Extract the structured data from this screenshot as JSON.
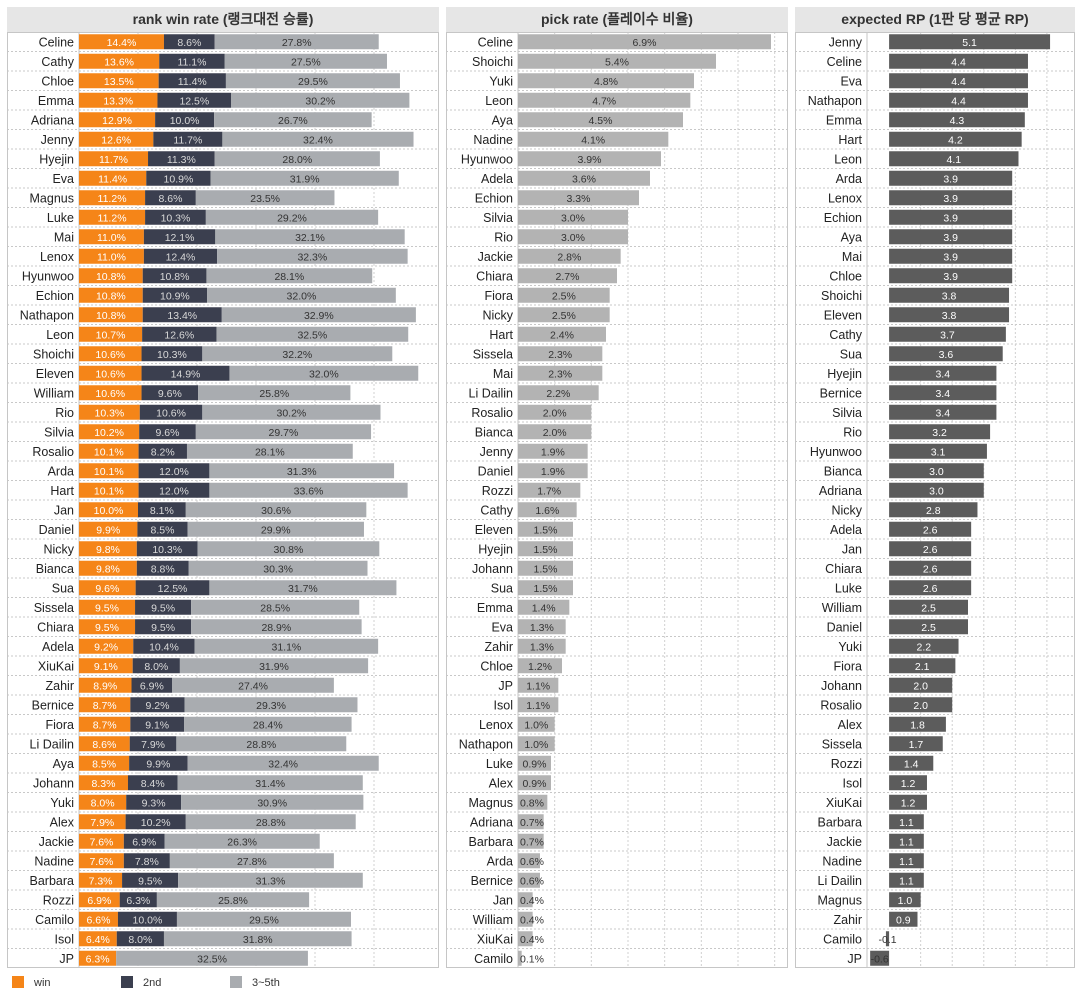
{
  "colors": {
    "win": "#f58518",
    "second": "#3b3f4f",
    "third_fifth": "#a9acb0",
    "pick": "#b3b3b3",
    "rp": "#5c5c5c"
  },
  "legend": {
    "win": "win",
    "second": "2nd",
    "third_fifth": "3~5th"
  },
  "chart_data": [
    {
      "type": "bar",
      "stacked": true,
      "orientation": "horizontal",
      "title": "rank win rate (랭크대전 승률)",
      "categories": [
        "Celine",
        "Cathy",
        "Chloe",
        "Emma",
        "Adriana",
        "Jenny",
        "Hyejin",
        "Eva",
        "Magnus",
        "Luke",
        "Mai",
        "Lenox",
        "Hyunwoo",
        "Echion",
        "Nathapon",
        "Leon",
        "Shoichi",
        "Eleven",
        "William",
        "Rio",
        "Silvia",
        "Rosalio",
        "Arda",
        "Hart",
        "Jan",
        "Daniel",
        "Nicky",
        "Bianca",
        "Sua",
        "Sissela",
        "Chiara",
        "Adela",
        "XiuKai",
        "Zahir",
        "Bernice",
        "Fiora",
        "Li Dailin",
        "Aya",
        "Johann",
        "Yuki",
        "Alex",
        "Jackie",
        "Nadine",
        "Barbara",
        "Rozzi",
        "Camilo",
        "Isol",
        "JP"
      ],
      "series": [
        {
          "name": "win",
          "unit": "%",
          "values": [
            14.4,
            13.6,
            13.5,
            13.3,
            12.9,
            12.6,
            11.7,
            11.4,
            11.2,
            11.2,
            11.0,
            11.0,
            10.8,
            10.8,
            10.8,
            10.7,
            10.6,
            10.6,
            10.6,
            10.3,
            10.2,
            10.1,
            10.1,
            10.1,
            10.0,
            9.9,
            9.8,
            9.8,
            9.6,
            9.5,
            9.5,
            9.2,
            9.1,
            8.9,
            8.7,
            8.7,
            8.6,
            8.5,
            8.3,
            8.0,
            7.9,
            7.6,
            7.6,
            7.3,
            6.9,
            6.6,
            6.4,
            6.3
          ]
        },
        {
          "name": "2nd",
          "unit": "%",
          "values": [
            8.6,
            11.1,
            11.4,
            12.5,
            10.0,
            11.7,
            11.3,
            10.9,
            8.6,
            10.3,
            12.1,
            12.4,
            10.8,
            10.9,
            13.4,
            12.6,
            10.3,
            14.9,
            9.6,
            10.6,
            9.6,
            8.2,
            12.0,
            12.0,
            8.1,
            8.5,
            10.3,
            8.8,
            12.5,
            9.5,
            9.5,
            10.4,
            8.0,
            6.9,
            9.2,
            9.1,
            7.9,
            9.9,
            8.4,
            9.3,
            10.2,
            6.9,
            7.8,
            9.5,
            6.3,
            10.0,
            8.0,
            null
          ]
        },
        {
          "name": "3~5th",
          "unit": "%",
          "values": [
            27.8,
            27.5,
            29.5,
            30.2,
            26.7,
            32.4,
            28.0,
            31.9,
            23.5,
            29.2,
            32.1,
            32.3,
            28.1,
            32.0,
            32.9,
            32.5,
            32.2,
            32.0,
            25.8,
            30.2,
            29.7,
            28.1,
            31.3,
            33.6,
            30.6,
            29.9,
            30.8,
            30.3,
            31.7,
            28.5,
            28.9,
            31.1,
            31.9,
            27.4,
            29.3,
            28.4,
            28.8,
            32.4,
            31.4,
            30.9,
            28.8,
            26.3,
            27.8,
            31.3,
            25.8,
            29.5,
            31.8,
            32.5
          ]
        }
      ],
      "xlim": [
        0,
        60
      ]
    },
    {
      "type": "bar",
      "orientation": "horizontal",
      "title": "pick rate (플레이수 비율)",
      "categories": [
        "Celine",
        "Shoichi",
        "Yuki",
        "Leon",
        "Aya",
        "Nadine",
        "Hyunwoo",
        "Adela",
        "Echion",
        "Silvia",
        "Rio",
        "Jackie",
        "Chiara",
        "Fiora",
        "Nicky",
        "Hart",
        "Sissela",
        "Mai",
        "Li Dailin",
        "Rosalio",
        "Bianca",
        "Jenny",
        "Daniel",
        "Rozzi",
        "Cathy",
        "Eleven",
        "Hyejin",
        "Johann",
        "Sua",
        "Emma",
        "Eva",
        "Zahir",
        "Chloe",
        "JP",
        "Isol",
        "Lenox",
        "Nathapon",
        "Luke",
        "Alex",
        "Magnus",
        "Adriana",
        "Barbara",
        "Arda",
        "Bernice",
        "Jan",
        "William",
        "XiuKai",
        "Camilo"
      ],
      "values": [
        6.9,
        5.4,
        4.8,
        4.7,
        4.5,
        4.1,
        3.9,
        3.6,
        3.3,
        3.0,
        3.0,
        2.8,
        2.7,
        2.5,
        2.5,
        2.4,
        2.3,
        2.3,
        2.2,
        2.0,
        2.0,
        1.9,
        1.9,
        1.7,
        1.6,
        1.5,
        1.5,
        1.5,
        1.5,
        1.4,
        1.3,
        1.3,
        1.2,
        1.1,
        1.1,
        1.0,
        1.0,
        0.9,
        0.9,
        0.8,
        0.7,
        0.7,
        0.6,
        0.6,
        0.4,
        0.4,
        0.4,
        0.1
      ],
      "unit": "%",
      "xlim": [
        0,
        7.2
      ]
    },
    {
      "type": "bar",
      "orientation": "horizontal",
      "title": "expected RP (1판 당 평균 RP)",
      "categories": [
        "Jenny",
        "Celine",
        "Eva",
        "Nathapon",
        "Emma",
        "Hart",
        "Leon",
        "Arda",
        "Lenox",
        "Echion",
        "Aya",
        "Mai",
        "Chloe",
        "Shoichi",
        "Eleven",
        "Cathy",
        "Sua",
        "Hyejin",
        "Bernice",
        "Silvia",
        "Rio",
        "Hyunwoo",
        "Bianca",
        "Adriana",
        "Nicky",
        "Adela",
        "Jan",
        "Chiara",
        "Luke",
        "William",
        "Daniel",
        "Yuki",
        "Fiora",
        "Johann",
        "Rosalio",
        "Alex",
        "Sissela",
        "Rozzi",
        "Isol",
        "XiuKai",
        "Barbara",
        "Jackie",
        "Nadine",
        "Li Dailin",
        "Magnus",
        "Zahir",
        "Camilo",
        "JP"
      ],
      "values": [
        5.1,
        4.4,
        4.4,
        4.4,
        4.3,
        4.2,
        4.1,
        3.9,
        3.9,
        3.9,
        3.9,
        3.9,
        3.9,
        3.8,
        3.8,
        3.7,
        3.6,
        3.4,
        3.4,
        3.4,
        3.2,
        3.1,
        3.0,
        3.0,
        2.8,
        2.6,
        2.6,
        2.6,
        2.6,
        2.5,
        2.5,
        2.2,
        2.1,
        2.0,
        2.0,
        1.8,
        1.7,
        1.4,
        1.2,
        1.2,
        1.1,
        1.1,
        1.1,
        1.1,
        1.0,
        0.9,
        -0.1,
        -0.6
      ],
      "xlim": [
        -0.7,
        5.7
      ]
    }
  ]
}
